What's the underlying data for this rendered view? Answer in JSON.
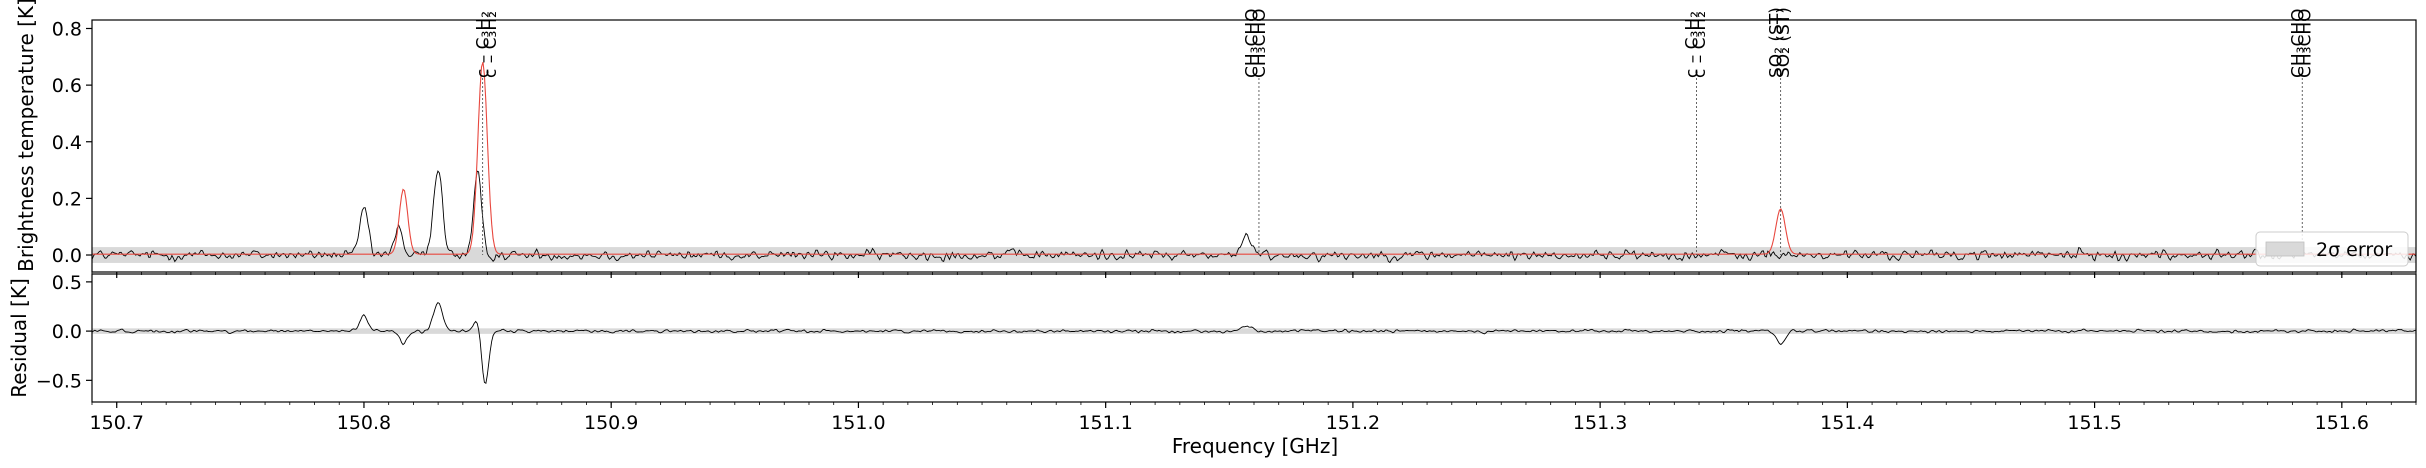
{
  "chart_data": [
    {
      "type": "line",
      "panel": "spectrum",
      "xlabel": "",
      "ylabel": "Brightness temperature [K]",
      "xlim": [
        150.69,
        151.63
      ],
      "ylim": [
        -0.06,
        0.83
      ],
      "yticks": [
        0.0,
        0.2,
        0.4,
        0.6,
        0.8
      ],
      "yticklabels": [
        "0.0",
        "0.2",
        "0.4",
        "0.6",
        "0.8"
      ],
      "series": [
        {
          "name": "",
          "style": "observed",
          "color": "#000000",
          "noise": 0.014,
          "peaks": [
            [
              150.8,
              0.17,
              0.0016
            ],
            [
              150.814,
              0.11,
              0.0014
            ],
            [
              150.83,
              0.31,
              0.0018
            ],
            [
              150.846,
              0.28,
              0.0016
            ],
            [
              151.157,
              0.06,
              0.002
            ]
          ]
        },
        {
          "name": "",
          "style": "model",
          "color": "#e8483f",
          "peaks": [
            [
              150.816,
              0.23,
              0.0017
            ],
            [
              150.848,
              0.68,
              0.0019
            ],
            [
              151.373,
              0.16,
              0.0019
            ]
          ]
        }
      ],
      "error_band": {
        "name": "2σ error",
        "label": "2$\\sigma$ error",
        "half_width": 0.028,
        "color": "#d9d9d9"
      },
      "legend": "lower-right",
      "line_labels": [
        {
          "x": 150.848,
          "text": "c – C₃H₂"
        },
        {
          "x": 150.851,
          "text": "c – C₃H₂"
        },
        {
          "x": 151.159,
          "text": "CH₃CHO"
        },
        {
          "x": 151.162,
          "text": "CH₃CHO"
        },
        {
          "x": 151.337,
          "text": "c – C₃H₂"
        },
        {
          "x": 151.34,
          "text": "c – C₃H₂"
        },
        {
          "x": 151.371,
          "text": "SO₂ (ST)"
        },
        {
          "x": 151.374,
          "text": "SO₂ (ST)"
        },
        {
          "x": 151.582,
          "text": "CH₃CHO"
        },
        {
          "x": 151.585,
          "text": "CH₃CHO"
        }
      ],
      "marker_lines_x": [
        150.848,
        151.162,
        151.339,
        151.373,
        151.584
      ]
    },
    {
      "type": "line",
      "panel": "residual",
      "xlabel": "Frequency [GHz]",
      "ylabel": "Residual [K]",
      "xlim": [
        150.69,
        151.63
      ],
      "ylim": [
        -0.72,
        0.58
      ],
      "yticks": [
        -0.5,
        0.0,
        0.5
      ],
      "yticklabels": [
        "−0.5",
        "0.0",
        "0.5"
      ],
      "xticks": [
        150.7,
        150.8,
        150.9,
        151.0,
        151.1,
        151.2,
        151.3,
        151.4,
        151.5,
        151.6
      ],
      "xticklabels": [
        "150.7",
        "150.8",
        "150.9",
        "151.0",
        "151.1",
        "151.2",
        "151.3",
        "151.4",
        "151.5",
        "151.6"
      ],
      "series": [
        {
          "name": "",
          "style": "residual",
          "color": "#000000",
          "noise": 0.012,
          "peaks": [
            [
              150.8,
              0.16,
              0.0016
            ],
            [
              150.816,
              -0.12,
              0.0016
            ],
            [
              150.83,
              0.3,
              0.0018
            ],
            [
              150.846,
              0.15,
              0.0014
            ],
            [
              150.849,
              -0.55,
              0.0015
            ],
            [
              151.157,
              0.05,
              0.002
            ],
            [
              151.373,
              -0.13,
              0.0018
            ]
          ]
        }
      ],
      "error_band": {
        "half_width": 0.028,
        "color": "#d9d9d9"
      }
    }
  ]
}
